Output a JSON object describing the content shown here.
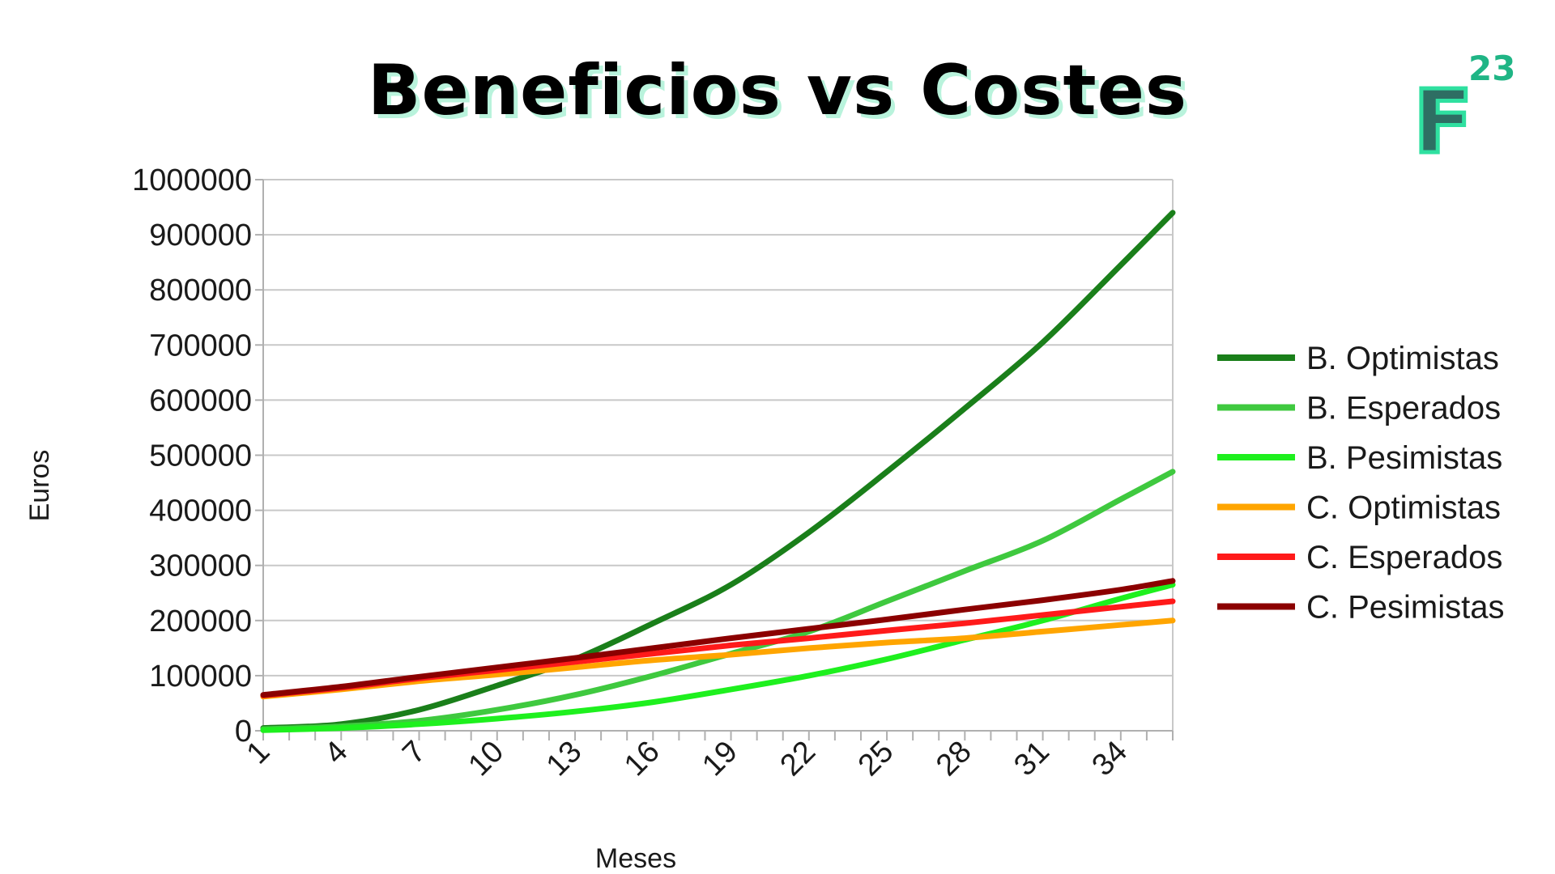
{
  "title": "Beneficios vs Costes",
  "logo": {
    "letter": "F",
    "superscript": "23",
    "brand_color": "#2fe0a0"
  },
  "chart_data": {
    "type": "line",
    "title": "",
    "xlabel": "Meses",
    "ylabel": "Euros",
    "ylim": [
      0,
      1000000
    ],
    "yticks": [
      0,
      100000,
      200000,
      300000,
      400000,
      500000,
      600000,
      700000,
      800000,
      900000,
      1000000
    ],
    "xlim": [
      1,
      36
    ],
    "xticks": [
      1,
      4,
      7,
      10,
      13,
      16,
      19,
      22,
      25,
      28,
      31,
      34
    ],
    "grid": "horizontal",
    "legend": "right",
    "series": [
      {
        "name": "B. Optimistas",
        "color": "#1a7f1a",
        "x": [
          1,
          4,
          7,
          10,
          13,
          16,
          19,
          22,
          25,
          28,
          31,
          34,
          36
        ],
        "y": [
          5000,
          12000,
          38000,
          82000,
          130000,
          195000,
          265000,
          360000,
          470000,
          585000,
          705000,
          845000,
          940000
        ]
      },
      {
        "name": "B. Esperados",
        "color": "#3fc93f",
        "x": [
          1,
          4,
          7,
          10,
          13,
          16,
          19,
          22,
          25,
          28,
          31,
          34,
          36
        ],
        "y": [
          3000,
          8000,
          18000,
          38000,
          65000,
          100000,
          140000,
          180000,
          235000,
          290000,
          345000,
          420000,
          470000
        ]
      },
      {
        "name": "B. Pesimistas",
        "color": "#1ef01e",
        "x": [
          1,
          4,
          7,
          10,
          13,
          16,
          19,
          22,
          25,
          28,
          31,
          34,
          36
        ],
        "y": [
          1000,
          5000,
          12000,
          22000,
          35000,
          52000,
          75000,
          100000,
          130000,
          165000,
          200000,
          240000,
          265000
        ]
      },
      {
        "name": "C. Optimistas",
        "color": "#ffa500",
        "x": [
          1,
          4,
          7,
          10,
          13,
          16,
          19,
          22,
          25,
          28,
          31,
          34,
          36
        ],
        "y": [
          62000,
          75000,
          90000,
          102000,
          115000,
          128000,
          138000,
          150000,
          160000,
          168000,
          180000,
          192000,
          200000
        ]
      },
      {
        "name": "C. Esperados",
        "color": "#ff1a1a",
        "x": [
          1,
          4,
          7,
          10,
          13,
          16,
          19,
          22,
          25,
          28,
          31,
          34,
          36
        ],
        "y": [
          64000,
          78000,
          95000,
          110000,
          125000,
          140000,
          155000,
          168000,
          182000,
          195000,
          210000,
          225000,
          235000
        ]
      },
      {
        "name": "C. Pesimistas",
        "color": "#8b0000",
        "x": [
          1,
          4,
          7,
          10,
          13,
          16,
          19,
          22,
          25,
          28,
          31,
          34,
          36
        ],
        "y": [
          65000,
          80000,
          98000,
          115000,
          132000,
          150000,
          168000,
          185000,
          202000,
          220000,
          237000,
          256000,
          272000
        ]
      }
    ]
  }
}
